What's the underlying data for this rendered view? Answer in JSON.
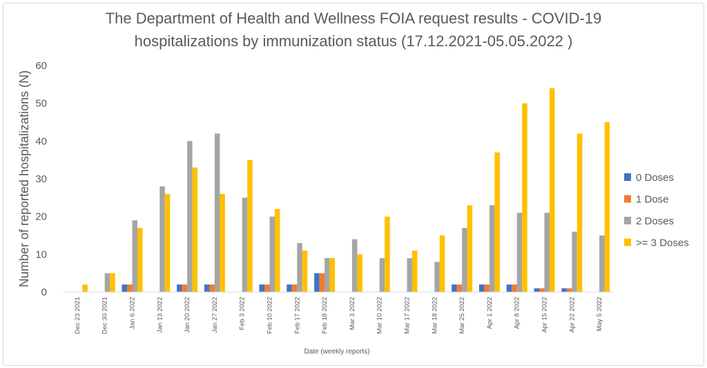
{
  "chart_data": {
    "type": "bar",
    "title_lines": [
      "The Department of Health and Wellness FOIA request results - COVID-19",
      "hospitalizations by immunization status (17.12.2021-05.05.2022 )"
    ],
    "xlabel": "Date (weekly reports)",
    "ylabel": "Number of reported hospitalizations (N)",
    "ylim": [
      0,
      60
    ],
    "yticks": [
      "0",
      "10",
      "20",
      "30",
      "40",
      "50",
      "60"
    ],
    "grid": false,
    "legend_position": "right",
    "categories": [
      "Dec 23 2021",
      "Dec 30 2021",
      "Jan 6 2022",
      "Jan 13 2022",
      "Jan 20 2022",
      "Jan 27 2022",
      "Feb 3 2022",
      "Feb 10 2022",
      "Feb 17 2022",
      "Feb 18 2022",
      "Mar 3 2022",
      "Mar 10 2022",
      "Mar 17 2022",
      "Mar 18 2022",
      "Mar 25 2022",
      "Apr 1 2022",
      "Apr 8 2022",
      "Apr 15 2022",
      "Apr 22 2022",
      "May 5 2022"
    ],
    "series": [
      {
        "name": "0 Doses",
        "color": "#4472c4",
        "values": [
          0,
          0,
          2,
          0,
          2,
          2,
          0,
          2,
          2,
          5,
          0,
          0,
          0,
          0,
          2,
          2,
          2,
          1,
          1,
          0
        ]
      },
      {
        "name": "1 Dose",
        "color": "#ed7d31",
        "values": [
          0,
          0,
          2,
          0,
          2,
          2,
          0,
          2,
          2,
          5,
          0,
          0,
          0,
          0,
          2,
          2,
          2,
          1,
          1,
          0
        ]
      },
      {
        "name": "2 Doses",
        "color": "#a5a5a5",
        "values": [
          0,
          5,
          19,
          28,
          40,
          42,
          25,
          20,
          13,
          9,
          14,
          9,
          9,
          8,
          17,
          23,
          21,
          21,
          16,
          15
        ]
      },
      {
        "name": ">= 3 Doses",
        "color": "#ffc000",
        "values": [
          2,
          5,
          17,
          26,
          33,
          26,
          35,
          22,
          11,
          9,
          10,
          20,
          11,
          15,
          23,
          37,
          50,
          54,
          42,
          45
        ]
      }
    ]
  }
}
